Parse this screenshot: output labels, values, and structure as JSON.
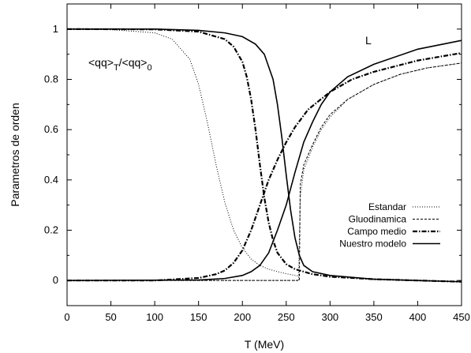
{
  "chart_data": {
    "type": "line",
    "xlabel": "T (MeV)",
    "ylabel": "Parametros de orden",
    "xlim": [
      0,
      450
    ],
    "ylim": [
      -0.1,
      1.1
    ],
    "xticks": [
      0,
      50,
      100,
      150,
      200,
      250,
      300,
      350,
      400,
      450
    ],
    "yticks": [
      0,
      0.2,
      0.4,
      0.6,
      0.8,
      1
    ],
    "ytick_labels": [
      "0",
      "0.2",
      "0.4",
      "0.6",
      "0.8",
      "1"
    ],
    "grid": false,
    "legend_position": "lower-right",
    "annotations": {
      "chiral": {
        "main": "<qq>",
        "sub1": "T",
        "mid": "/<qq>",
        "sub2": "0"
      },
      "polyakov": "L"
    },
    "series": [
      {
        "name": "Estandar",
        "style": "dotted",
        "chiral": {
          "x": [
            0,
            50,
            100,
            120,
            140,
            150,
            160,
            170,
            180,
            190,
            200,
            210,
            220,
            230,
            240,
            250,
            260,
            265
          ],
          "y": [
            1.0,
            0.998,
            0.985,
            0.96,
            0.88,
            0.78,
            0.63,
            0.46,
            0.31,
            0.2,
            0.13,
            0.085,
            0.06,
            0.045,
            0.035,
            0.027,
            0.02,
            0.018
          ]
        },
        "polyakov": {
          "x": [
            0,
            264,
            266,
            270,
            280,
            290,
            300,
            320,
            350,
            380,
            410,
            450
          ],
          "y": [
            0,
            0,
            0.33,
            0.44,
            0.53,
            0.6,
            0.65,
            0.72,
            0.78,
            0.82,
            0.845,
            0.865
          ]
        }
      },
      {
        "name": "Gluodinamica",
        "style": "dashed",
        "chiral": {
          "x": [],
          "y": []
        },
        "polyakov": {
          "x": [
            0,
            265,
            266,
            270,
            280,
            290,
            300,
            320,
            350,
            380,
            410,
            450
          ],
          "y": [
            0,
            0,
            0.38,
            0.46,
            0.54,
            0.61,
            0.66,
            0.72,
            0.78,
            0.82,
            0.845,
            0.865
          ]
        }
      },
      {
        "name": "Campo medio",
        "style": "dashdot",
        "chiral": {
          "x": [
            0,
            100,
            150,
            180,
            190,
            200,
            205,
            210,
            215,
            220,
            225,
            230,
            235,
            240,
            250,
            260,
            280,
            300,
            350,
            400,
            450
          ],
          "y": [
            1.0,
            0.999,
            0.99,
            0.96,
            0.93,
            0.87,
            0.81,
            0.72,
            0.6,
            0.46,
            0.33,
            0.23,
            0.16,
            0.11,
            0.065,
            0.045,
            0.025,
            0.015,
            0.005,
            0.0,
            -0.005
          ]
        },
        "polyakov": {
          "x": [
            0,
            100,
            150,
            170,
            180,
            190,
            200,
            210,
            220,
            230,
            240,
            250,
            260,
            275,
            300,
            325,
            350,
            400,
            450
          ],
          "y": [
            0,
            0.0,
            0.01,
            0.025,
            0.04,
            0.07,
            0.12,
            0.2,
            0.3,
            0.4,
            0.48,
            0.55,
            0.61,
            0.68,
            0.75,
            0.8,
            0.83,
            0.875,
            0.905
          ]
        }
      },
      {
        "name": "Nuestro modelo",
        "style": "solid",
        "chiral": {
          "x": [
            0,
            100,
            150,
            180,
            200,
            215,
            225,
            235,
            240,
            245,
            250,
            255,
            260,
            265,
            270,
            280,
            300,
            350,
            400,
            450
          ],
          "y": [
            1.0,
            1.0,
            0.995,
            0.985,
            0.97,
            0.94,
            0.9,
            0.8,
            0.7,
            0.57,
            0.42,
            0.28,
            0.17,
            0.1,
            0.06,
            0.035,
            0.02,
            0.005,
            0.0,
            -0.005
          ]
        },
        "polyakov": {
          "x": [
            0,
            150,
            180,
            200,
            210,
            220,
            230,
            240,
            250,
            260,
            270,
            280,
            290,
            300,
            320,
            350,
            400,
            450
          ],
          "y": [
            0,
            0.002,
            0.008,
            0.02,
            0.035,
            0.06,
            0.11,
            0.2,
            0.3,
            0.43,
            0.55,
            0.63,
            0.7,
            0.75,
            0.81,
            0.86,
            0.92,
            0.955
          ]
        }
      }
    ]
  }
}
